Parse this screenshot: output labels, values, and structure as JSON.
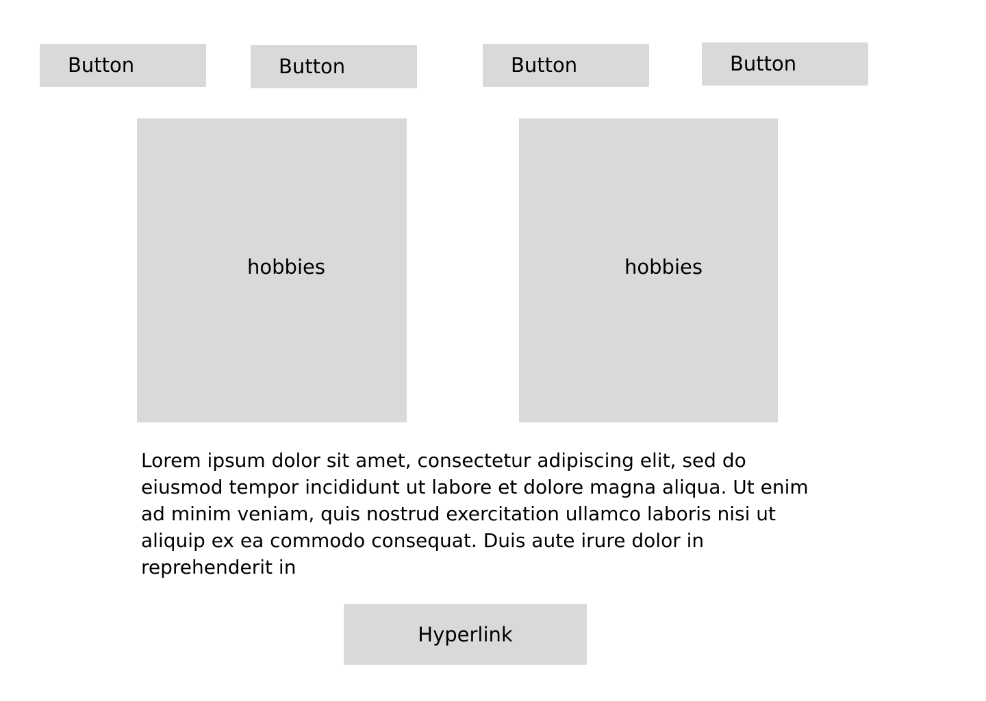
{
  "nav": {
    "buttons": [
      {
        "label": "Button"
      },
      {
        "label": "Button"
      },
      {
        "label": "Button"
      },
      {
        "label": "Button"
      }
    ]
  },
  "cards": [
    {
      "label": "hobbies"
    },
    {
      "label": "hobbies"
    }
  ],
  "body": {
    "paragraph": "Lorem ipsum dolor sit amet, consectetur adipiscing elit, sed do eiusmod tempor incididunt ut labore et dolore magna aliqua. Ut enim ad minim veniam, quis nostrud exercitation ullamco laboris nisi ut aliquip ex ea commodo consequat. Duis aute irure dolor in reprehenderit in"
  },
  "footer": {
    "link_label": "Hyperlink"
  },
  "colors": {
    "placeholder_fill": "#d9d9d9",
    "background": "#ffffff",
    "text": "#000000"
  }
}
